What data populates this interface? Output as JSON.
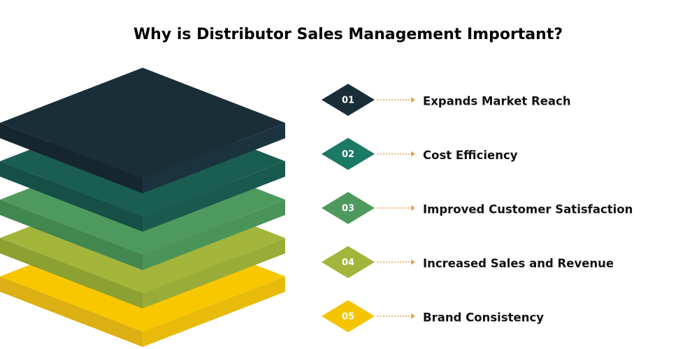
{
  "title": "Why is Distributor Sales Management Important?",
  "items": [
    {
      "number": "01",
      "label": "Expands Market Reach"
    },
    {
      "number": "02",
      "label": "Cost Efficiency"
    },
    {
      "number": "03",
      "label": "Improved Customer Satisfaction"
    },
    {
      "number": "04",
      "label": "Increased Sales and Revenue"
    },
    {
      "number": "05",
      "label": "Brand Consistency"
    }
  ]
}
